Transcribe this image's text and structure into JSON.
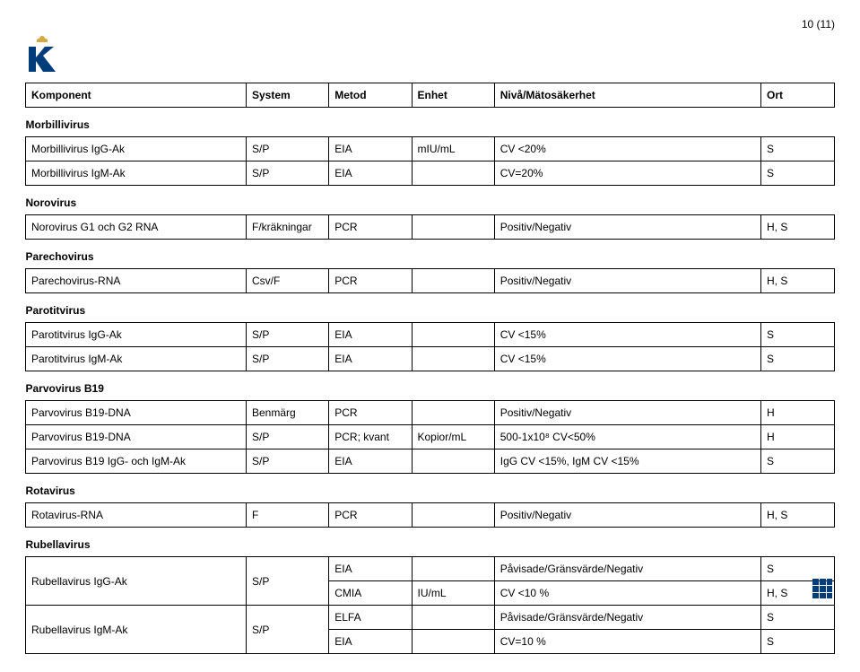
{
  "page_number": "10 (11)",
  "headers": {
    "komponent": "Komponent",
    "system": "System",
    "metod": "Metod",
    "enhet": "Enhet",
    "niva": "Nivå/Mätosäkerhet",
    "ort": "Ort"
  },
  "sections": [
    {
      "title": "Morbillivirus",
      "rows": [
        {
          "komponent": "Morbillivirus IgG-Ak",
          "system": "S/P",
          "metod": "EIA",
          "enhet": "mIU/mL",
          "niva": "CV <20%",
          "ort": "S"
        },
        {
          "komponent": "Morbillivirus IgM-Ak",
          "system": "S/P",
          "metod": "EIA",
          "enhet": "",
          "niva": "CV=20%",
          "ort": "S"
        }
      ]
    },
    {
      "title": "Norovirus",
      "rows": [
        {
          "komponent": "Norovirus G1 och G2 RNA",
          "system": "F/kräkningar",
          "metod": "PCR",
          "enhet": "",
          "niva": "Positiv/Negativ",
          "ort": "H, S"
        }
      ]
    },
    {
      "title": "Parechovirus",
      "rows": [
        {
          "komponent": "Parechovirus-RNA",
          "system": "Csv/F",
          "metod": "PCR",
          "enhet": "",
          "niva": "Positiv/Negativ",
          "ort": "H, S"
        }
      ]
    },
    {
      "title": "Parotitvirus",
      "rows": [
        {
          "komponent": "Parotitvirus IgG-Ak",
          "system": "S/P",
          "metod": "EIA",
          "enhet": "",
          "niva": "CV <15%",
          "ort": "S"
        },
        {
          "komponent": "Parotitvirus IgM-Ak",
          "system": "S/P",
          "metod": "EIA",
          "enhet": "",
          "niva": "CV <15%",
          "ort": "S"
        }
      ]
    },
    {
      "title": "Parvovirus B19",
      "rows": [
        {
          "komponent": "Parvovirus B19-DNA",
          "system": "Benmärg",
          "metod": "PCR",
          "enhet": "",
          "niva": "Positiv/Negativ",
          "ort": "H"
        },
        {
          "komponent": "Parvovirus B19-DNA",
          "system": "S/P",
          "metod": "PCR; kvant",
          "enhet": "Kopior/mL",
          "niva": "500-1x10⁸ CV<50%",
          "ort": "H"
        },
        {
          "komponent": "Parvovirus B19 IgG- och IgM-Ak",
          "system": "S/P",
          "metod": "EIA",
          "enhet": "",
          "niva": "IgG CV <15%, IgM CV <15%",
          "ort": "S"
        }
      ]
    },
    {
      "title": "Rotavirus",
      "rows": [
        {
          "komponent": "Rotavirus-RNA",
          "system": "F",
          "metod": "PCR",
          "enhet": "",
          "niva": "Positiv/Negativ",
          "ort": "H, S"
        }
      ]
    },
    {
      "title": "Rubellavirus",
      "rows": [
        {
          "komponent": "Rubellavirus IgG-Ak",
          "system": "S/P",
          "metod": "EIA",
          "enhet": "",
          "niva": "Påvisade/Gränsvärde/Negativ",
          "ort": "S",
          "rowspan": 2
        },
        {
          "komponent": "",
          "system": "",
          "metod": "CMIA",
          "enhet": "IU/mL",
          "niva": "CV <10 %",
          "ort": "H, S",
          "continuation": true
        },
        {
          "komponent": "Rubellavirus IgM-Ak",
          "system": "S/P",
          "metod": "ELFA",
          "enhet": "",
          "niva": "Påvisade/Gränsvärde/Negativ",
          "ort": "S",
          "rowspan": 2
        },
        {
          "komponent": "",
          "system": "",
          "metod": "EIA",
          "enhet": "",
          "niva": "CV=10 %",
          "ort": "S",
          "continuation": true
        }
      ]
    }
  ],
  "colors": {
    "text": "#000000",
    "border": "#000000",
    "background": "#ffffff",
    "logo_blue": "#003d7a",
    "crown_gold": "#d4a941"
  }
}
